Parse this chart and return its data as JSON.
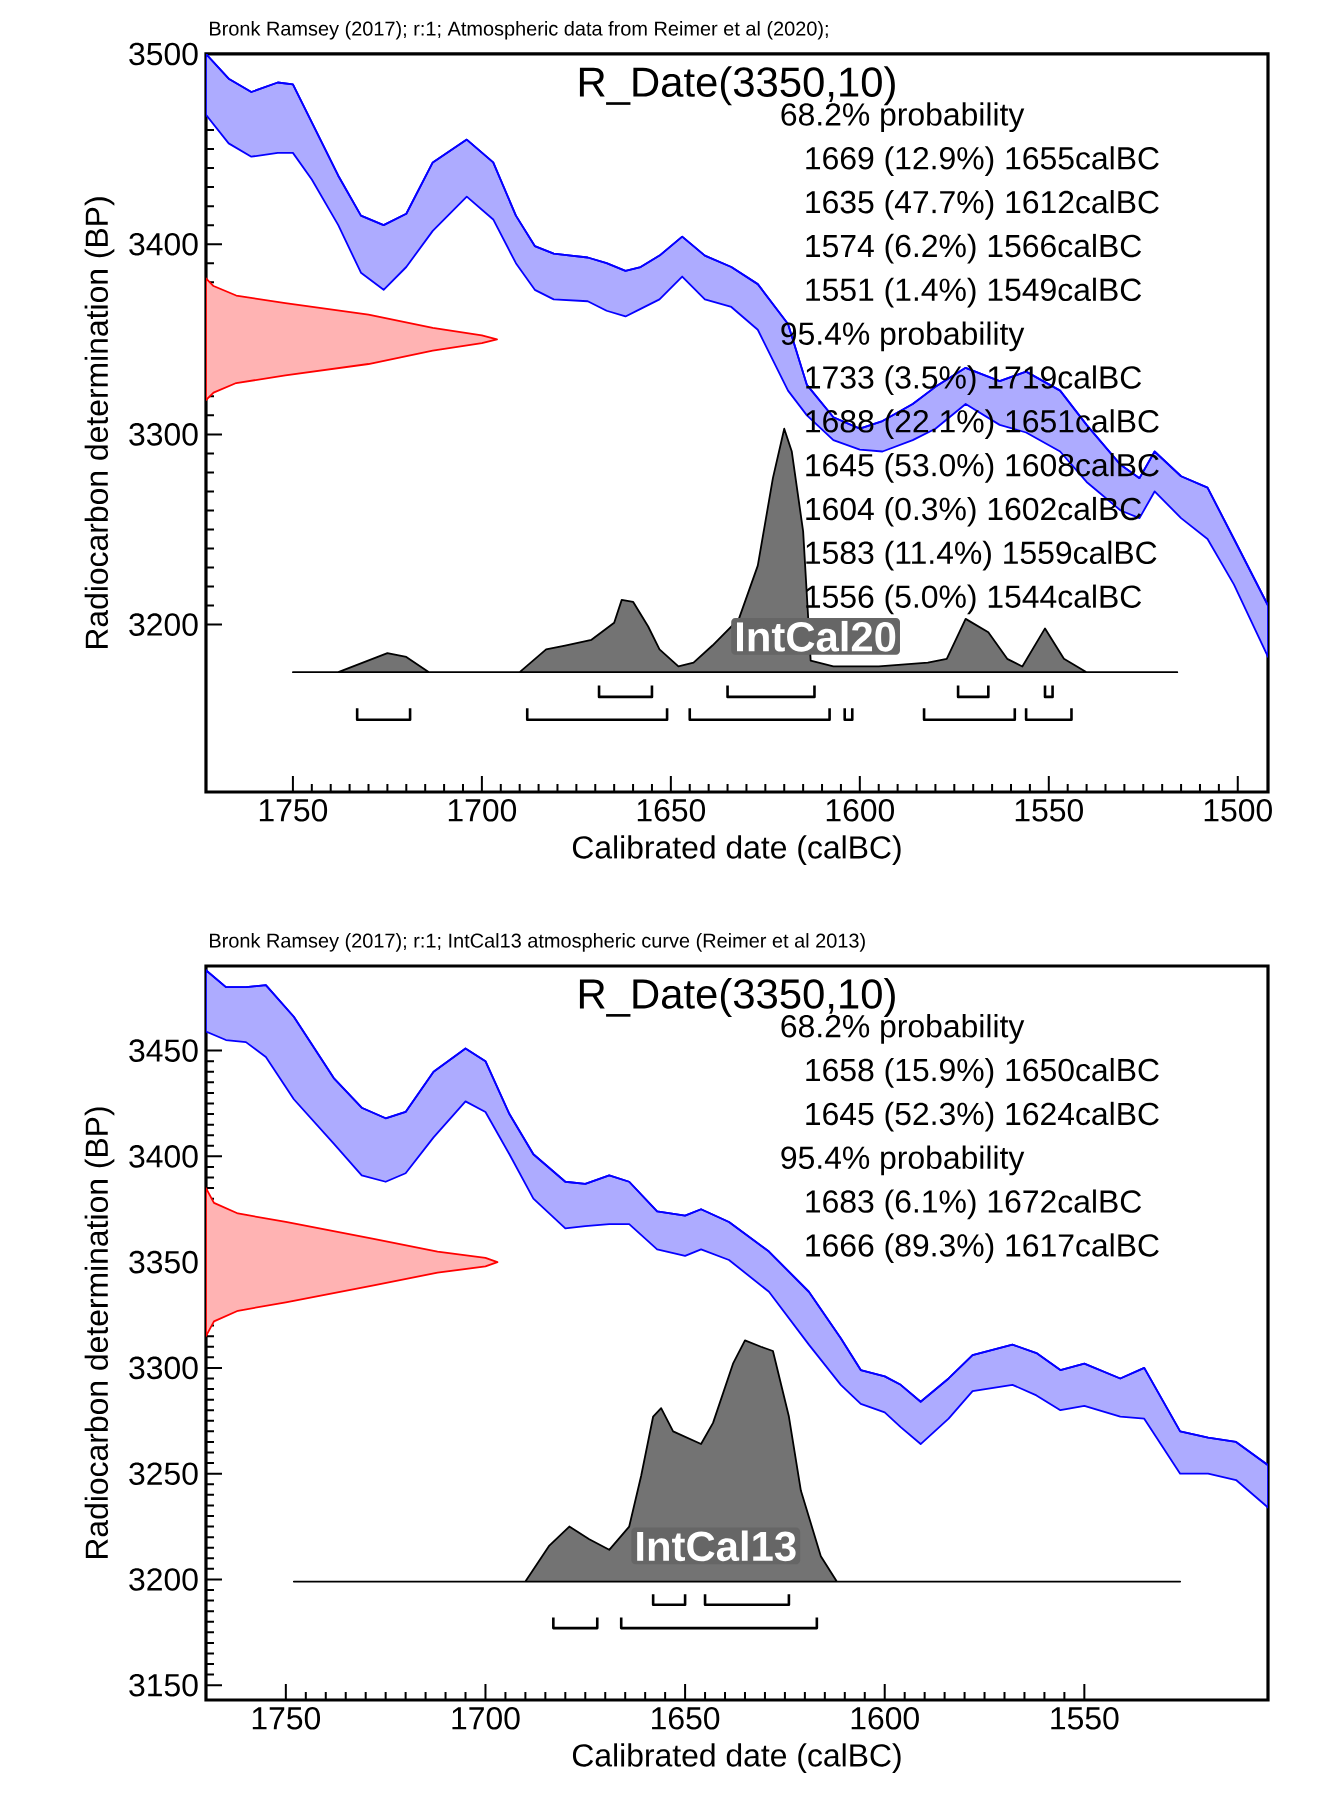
{
  "chart_data": [
    {
      "type": "area",
      "title": "Bronk Ramsey (2017); r:1; Atmospheric data from Reimer et al (2020);",
      "subtitle": "R_Date(3350,10)",
      "xlabel": "Calibrated date (calBC)",
      "ylabel": "Radiocarbon determination (BP)",
      "xlim": [
        1773,
        1492
      ],
      "ylim": [
        3112,
        3500
      ],
      "xticks": [
        1750,
        1700,
        1650,
        1600,
        1550,
        1500
      ],
      "yticks": [
        3200,
        3300,
        3400,
        3500
      ],
      "annotations": [
        "68.2% probability",
        "1669 (12.9%) 1655calBC",
        "1635 (47.7%) 1612calBC",
        "1574 (6.2%) 1566calBC",
        "1551 (1.4%) 1549calBC",
        "95.4% probability",
        "1733 (3.5%) 1719calBC",
        "1688 (22.1%) 1651calBC",
        "1645 (53.0%) 1608calBC",
        "1604 (0.3%) 1602calBC",
        "1583 (11.4%) 1559calBC",
        "1556 (5.0%) 1544calBC"
      ],
      "series": [
        {
          "type": "line",
          "name": "IntCal20",
          "color": "#0600ff",
          "x": [
            1773,
            1767,
            1761,
            1754,
            1750,
            1745,
            1738,
            1732,
            1726,
            1720,
            1713,
            1704,
            1697,
            1691,
            1686,
            1681,
            1672,
            1667,
            1662,
            1658,
            1653,
            1647,
            1641,
            1634,
            1627,
            1619,
            1614,
            1607,
            1600,
            1594,
            1586,
            1580,
            1572,
            1563,
            1556,
            1547,
            1540,
            1531,
            1526,
            1522,
            1515,
            1508,
            1501,
            1492
          ],
          "values": [
            3500,
            3487,
            3480,
            3485,
            3484,
            3464,
            3436,
            3415,
            3410,
            3416,
            3443,
            3455,
            3443,
            3415,
            3399,
            3395,
            3393,
            3390,
            3386,
            3388,
            3394,
            3404,
            3394,
            3388,
            3379,
            3358,
            3326,
            3309,
            3303,
            3307,
            3316,
            3325,
            3335,
            3328,
            3333,
            3323,
            3305,
            3284,
            3277,
            3291,
            3278,
            3272,
            3245,
            3210
          ],
          "upper": [
            3500,
            3487,
            3480,
            3485,
            3484,
            3464,
            3436,
            3415,
            3410,
            3416,
            3443,
            3455,
            3443,
            3415,
            3399,
            3395,
            3393,
            3390,
            3386,
            3388,
            3394,
            3404,
            3394,
            3388,
            3379,
            3358,
            3326,
            3309,
            3303,
            3307,
            3316,
            3325,
            3335,
            3328,
            3333,
            3323,
            3305,
            3284,
            3277,
            3291,
            3278,
            3272,
            3245,
            3210
          ],
          "lower": [
            3468,
            3453,
            3446,
            3448,
            3448,
            3434,
            3410,
            3385,
            3376,
            3388,
            3407,
            3425,
            3413,
            3390,
            3376,
            3371,
            3370,
            3365,
            3362,
            3366,
            3371,
            3383,
            3371,
            3367,
            3355,
            3323,
            3310,
            3297,
            3292,
            3291,
            3297,
            3303,
            3316,
            3305,
            3301,
            3291,
            3275,
            3260,
            3256,
            3270,
            3256,
            3245,
            3221,
            3183
          ]
        },
        {
          "color": "#ffb3b3",
          "x": [
            1773,
            1771,
            1765,
            1752,
            1730,
            1713,
            1700,
            1696,
            1700,
            1713,
            1730,
            1752,
            1765,
            1771,
            1773
          ],
          "values": [
            3318,
            3322,
            3327,
            3331,
            3337,
            3344,
            3348,
            3350,
            3352,
            3356,
            3363,
            3369,
            3373,
            3378,
            3382
          ]
        },
        {
          "color": "#737373",
          "x": [
            1750,
            1738,
            1725,
            1720,
            1714,
            1690,
            1683,
            1678,
            1671,
            1665,
            1663,
            1660,
            1656,
            1653,
            1648,
            1644,
            1639,
            1632,
            1627,
            1623,
            1620,
            1618,
            1615,
            1613,
            1607,
            1600,
            1595,
            1582,
            1577,
            1572,
            1566,
            1561,
            1557,
            1551,
            1546,
            1540,
            1516
          ],
          "values": [
            3175,
            3175,
            3185,
            3183,
            3175,
            3175,
            3187,
            3189,
            3192,
            3201,
            3213,
            3212,
            3199,
            3187,
            3178,
            3180,
            3189,
            3203,
            3231,
            3277,
            3303,
            3291,
            3249,
            3181,
            3178,
            3178,
            3178,
            3180,
            3182,
            3203,
            3196,
            3182,
            3178,
            3198,
            3182,
            3175,
            3175
          ]
        },
        {
          "type": "line",
          "color": "#000000",
          "x": [
            1669,
            1669,
            1655,
            1655,
            null,
            1635,
            1635,
            1612,
            1612,
            null,
            1574,
            1574,
            1566,
            1566,
            null,
            1551,
            1551,
            1549,
            1549
          ],
          "values": [
            3168,
            3162,
            3162,
            3168,
            null,
            3168,
            3162,
            3162,
            3168,
            null,
            3168,
            3162,
            3162,
            3168,
            null,
            3168,
            3162,
            3162,
            3168
          ]
        },
        {
          "type": "line",
          "color": "#000000",
          "x": [
            1733,
            1733,
            1719,
            1719,
            null,
            1688,
            1688,
            1651,
            1651,
            null,
            1645,
            1645,
            1608,
            1608,
            null,
            1604,
            1604,
            1602,
            1602,
            null,
            1583,
            1583,
            1559,
            1559,
            null,
            1556,
            1556,
            1544,
            1544
          ],
          "values": [
            3156,
            3150,
            3150,
            3156,
            null,
            3156,
            3150,
            3150,
            3156,
            null,
            3156,
            3150,
            3150,
            3156,
            null,
            3156,
            3150,
            3150,
            3156,
            null,
            3156,
            3150,
            3150,
            3156,
            null,
            3156,
            3150,
            3150,
            3156
          ]
        }
      ]
    },
    {
      "type": "area",
      "title": "Bronk Ramsey (2017); r:1; IntCal13 atmospheric curve (Reimer et al 2013)",
      "subtitle": "R_Date(3350,10)",
      "xlabel": "Calibrated date (calBC)",
      "ylabel": "Radiocarbon determination (BP)",
      "xlim": [
        1770,
        1504
      ],
      "ylim": [
        3143,
        3490
      ],
      "xticks": [
        1750,
        1700,
        1650,
        1600,
        1550
      ],
      "yticks": [
        3150,
        3200,
        3250,
        3300,
        3350,
        3400,
        3450
      ],
      "annotations": [
        "68.2% probability",
        "1658 (15.9%) 1650calBC",
        "1645 (52.3%) 1624calBC",
        "95.4% probability",
        "1683 (6.1%) 1672calBC",
        "1666 (89.3%) 1617calBC"
      ],
      "series": [
        {
          "type": "line",
          "name": "IntCal13",
          "color": "#0600ff",
          "x": [
            1770,
            1765,
            1760,
            1755,
            1748,
            1738,
            1731,
            1725,
            1720,
            1713,
            1705,
            1700,
            1694,
            1688,
            1680,
            1675,
            1669,
            1664,
            1657,
            1650,
            1646,
            1639,
            1629,
            1619,
            1611,
            1606,
            1600,
            1596,
            1591,
            1584,
            1578,
            1568,
            1562,
            1556,
            1550,
            1541,
            1535,
            1526,
            1519,
            1512,
            1504
          ],
          "values": [
            3488,
            3480,
            3480,
            3481,
            3466,
            3437,
            3423,
            3418,
            3421,
            3440,
            3451,
            3445,
            3420,
            3401,
            3388,
            3387,
            3391,
            3388,
            3374,
            3372,
            3375,
            3369,
            3355,
            3336,
            3314,
            3299,
            3296,
            3292,
            3284,
            3295,
            3306,
            3311,
            3307,
            3299,
            3302,
            3295,
            3300,
            3270,
            3267,
            3265,
            3254
          ],
          "upper": [
            3488,
            3480,
            3480,
            3481,
            3466,
            3437,
            3423,
            3418,
            3421,
            3440,
            3451,
            3445,
            3420,
            3401,
            3388,
            3387,
            3391,
            3388,
            3374,
            3372,
            3375,
            3369,
            3355,
            3336,
            3314,
            3299,
            3296,
            3292,
            3284,
            3295,
            3306,
            3311,
            3307,
            3299,
            3302,
            3295,
            3300,
            3270,
            3267,
            3265,
            3254
          ],
          "lower": [
            3459,
            3455,
            3454,
            3447,
            3427,
            3406,
            3391,
            3388,
            3392,
            3409,
            3426,
            3421,
            3401,
            3380,
            3366,
            3367,
            3368,
            3368,
            3356,
            3353,
            3356,
            3351,
            3336,
            3311,
            3292,
            3283,
            3279,
            3272,
            3264,
            3276,
            3289,
            3292,
            3287,
            3280,
            3282,
            3277,
            3276,
            3250,
            3250,
            3247,
            3234
          ]
        },
        {
          "color": "#ffb3b3",
          "x": [
            1770,
            1768,
            1762,
            1750,
            1728,
            1712,
            1700,
            1697,
            1700,
            1712,
            1728,
            1750,
            1762,
            1768,
            1770
          ],
          "values": [
            3315,
            3322,
            3327,
            3331,
            3339,
            3345,
            3348,
            3350,
            3352,
            3355,
            3361,
            3369,
            3373,
            3378,
            3385
          ]
        },
        {
          "color": "#737373",
          "x": [
            1748,
            1690,
            1684,
            1679,
            1674,
            1669,
            1664,
            1661,
            1658,
            1656,
            1653,
            1646,
            1643,
            1638,
            1635,
            1631,
            1628,
            1624,
            1621,
            1616,
            1612,
            1526
          ],
          "values": [
            3199,
            3199,
            3216,
            3225,
            3219,
            3214,
            3225,
            3249,
            3277,
            3281,
            3270,
            3264,
            3274,
            3302,
            3313,
            3310,
            3308,
            3277,
            3242,
            3211,
            3199,
            3199
          ]
        },
        {
          "type": "line",
          "color": "#000000",
          "x": [
            1658,
            1658,
            1650,
            1650,
            null,
            1645,
            1645,
            1624,
            1624
          ],
          "values": [
            3193,
            3188,
            3188,
            3193,
            null,
            3193,
            3188,
            3188,
            3193
          ]
        },
        {
          "type": "line",
          "color": "#000000",
          "x": [
            1683,
            1683,
            1672,
            1672,
            null,
            1666,
            1666,
            1617,
            1617
          ],
          "values": [
            3182,
            3177,
            3177,
            3182,
            null,
            3182,
            3177,
            3177,
            3182
          ]
        }
      ]
    }
  ]
}
